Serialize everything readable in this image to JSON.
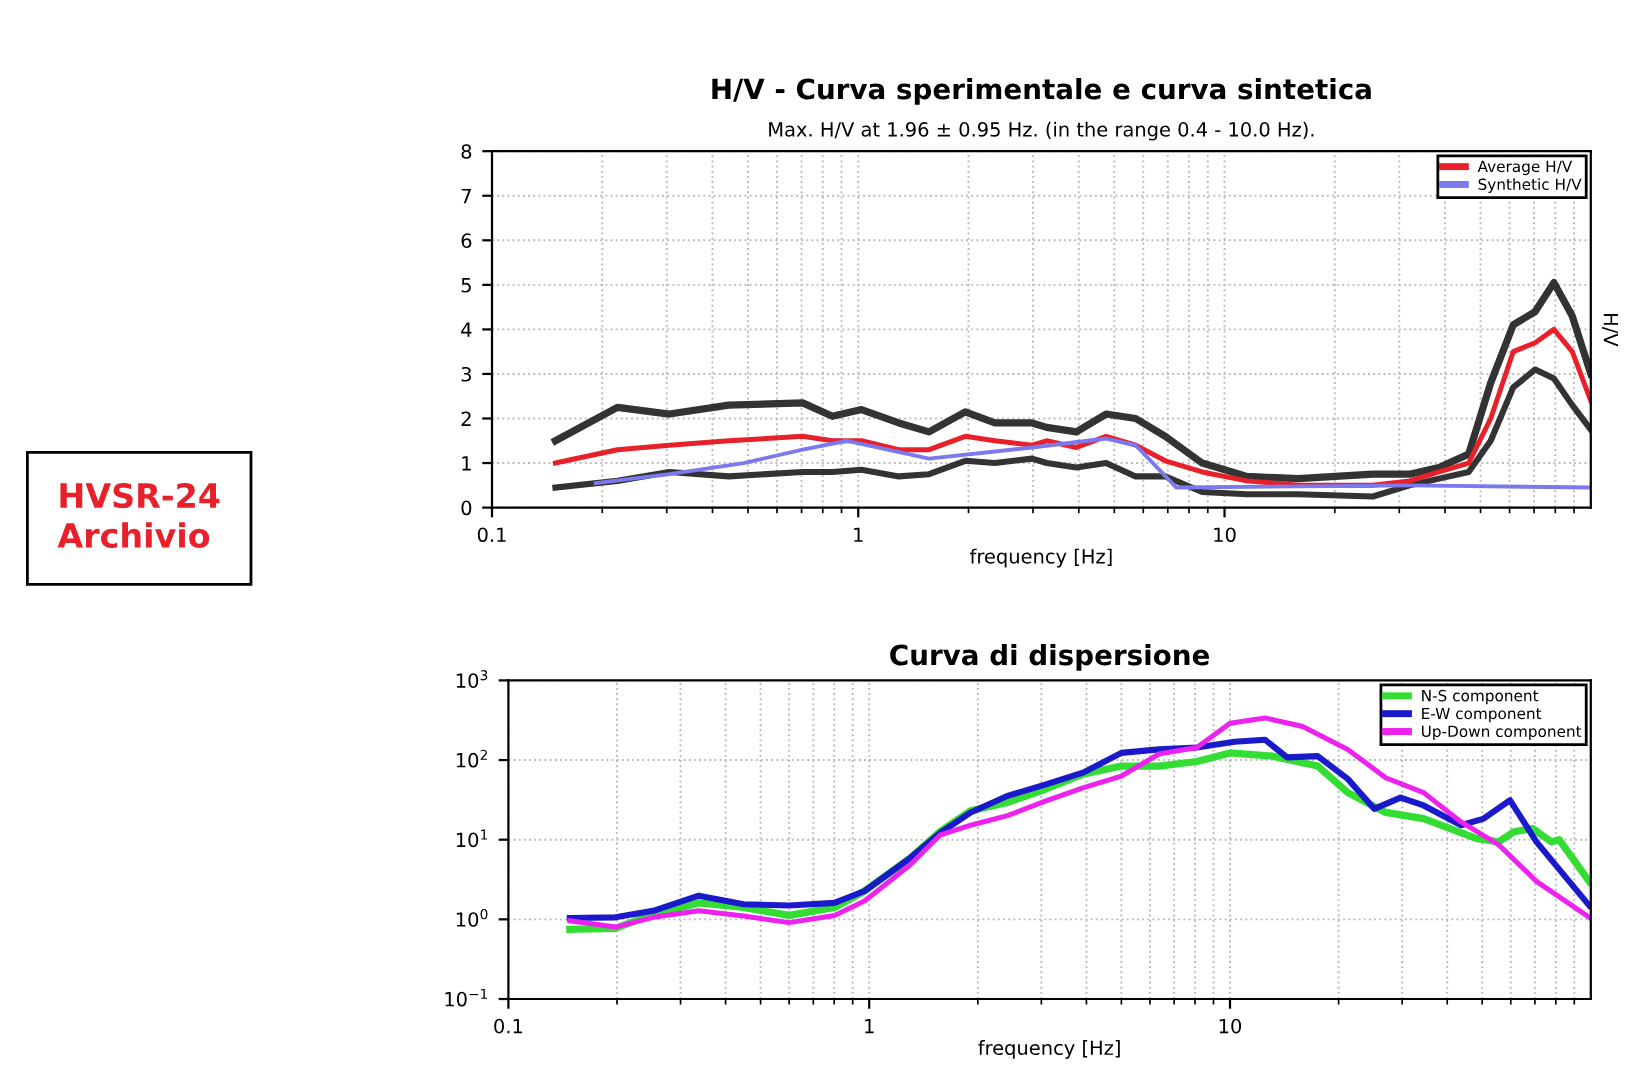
{
  "chart_data": [
    {
      "type": "line",
      "title": "H/V - Curva sperimentale e curva sintetica",
      "subtitle": "Max. H/V at 1.96 ± 0.95 Hz. (in the range 0.4 - 10.0 Hz).",
      "xlabel": "frequency [Hz]",
      "ylabel": "H/V",
      "log": "x",
      "xlim": [
        0.1,
        100
      ],
      "xticks": [
        0.1,
        1,
        10
      ],
      "ylim": [
        0,
        8
      ],
      "yticks": [
        0,
        1,
        2,
        3,
        4,
        5,
        6,
        7,
        8
      ],
      "grid": true,
      "legend": "top right",
      "annotations": [
        "HVSR-24\nArchivio"
      ],
      "series": [
        {
          "color": "#333333",
          "x": [
            0.149,
            0.22,
            0.305,
            0.443,
            0.705,
            0.85,
            1.02,
            1.29,
            1.56,
            1.96,
            2.36,
            2.98,
            3.27,
            3.94,
            4.75,
            5.72,
            6.89,
            8.69,
            11.5,
            15.9,
            25.4,
            32.0,
            38.5,
            46.4,
            53.3,
            61.4,
            70.5,
            79.3,
            89.0,
            100
          ],
          "values": [
            1.5,
            2.25,
            2.1,
            2.3,
            2.35,
            2.05,
            2.2,
            1.9,
            1.7,
            2.15,
            1.9,
            1.9,
            1.8,
            1.7,
            2.1,
            2.0,
            1.6,
            1.0,
            0.7,
            0.65,
            0.75,
            0.75,
            0.9,
            1.2,
            2.8,
            4.1,
            4.4,
            5.05,
            4.3,
            3.0
          ]
        },
        {
          "color": "#333333",
          "x": [
            0.149,
            0.22,
            0.305,
            0.443,
            0.705,
            0.85,
            1.02,
            1.29,
            1.56,
            1.96,
            2.36,
            2.98,
            3.27,
            3.94,
            4.75,
            5.72,
            6.89,
            8.69,
            11.5,
            15.9,
            25.4,
            32.0,
            38.5,
            46.4,
            53.3,
            61.4,
            70.5,
            79.3,
            89.0,
            100
          ],
          "values": [
            0.45,
            0.6,
            0.8,
            0.7,
            0.8,
            0.8,
            0.85,
            0.7,
            0.75,
            1.05,
            1.0,
            1.1,
            1.0,
            0.9,
            1.0,
            0.7,
            0.7,
            0.35,
            0.3,
            0.3,
            0.25,
            0.5,
            0.65,
            0.8,
            1.5,
            2.7,
            3.1,
            2.9,
            2.3,
            1.75
          ]
        },
        {
          "name": "Average H/V",
          "color": "#e8202a",
          "x": [
            0.149,
            0.22,
            0.305,
            0.443,
            0.705,
            0.85,
            1.02,
            1.29,
            1.56,
            1.96,
            2.36,
            2.98,
            3.27,
            3.94,
            4.75,
            5.72,
            6.89,
            8.69,
            11.5,
            15.9,
            25.4,
            32.0,
            38.5,
            46.4,
            53.3,
            61.4,
            70.5,
            79.3,
            89.0,
            100
          ],
          "values": [
            1.0,
            1.3,
            1.4,
            1.5,
            1.6,
            1.5,
            1.5,
            1.3,
            1.3,
            1.6,
            1.5,
            1.4,
            1.5,
            1.35,
            1.6,
            1.4,
            1.05,
            0.8,
            0.6,
            0.5,
            0.5,
            0.6,
            0.8,
            1.0,
            2.0,
            3.5,
            3.7,
            4.0,
            3.5,
            2.4
          ]
        },
        {
          "name": "Synthetic H/V",
          "color": "#7a7aee",
          "x": [
            0.192,
            0.305,
            0.486,
            0.705,
            0.933,
            1.56,
            2.98,
            4.75,
            5.72,
            7.39,
            32.0,
            100
          ],
          "values": [
            0.55,
            0.75,
            1.0,
            1.3,
            1.5,
            1.1,
            1.35,
            1.55,
            1.4,
            0.45,
            0.5,
            0.45
          ]
        }
      ]
    },
    {
      "type": "line",
      "title": "Curva di dispersione",
      "xlabel": "frequency [Hz]",
      "log": "xy",
      "xlim": [
        0.1,
        100
      ],
      "xticks": [
        0.1,
        1,
        10
      ],
      "ylim": [
        0.1,
        1000
      ],
      "yticks": [
        {
          "value": 0.1,
          "label": "10$^{−1}$"
        },
        {
          "value": 1,
          "label": "10$^{0}$"
        },
        {
          "value": 10,
          "label": "10$^{1}$"
        },
        {
          "value": 100,
          "label": "10$^{2}$"
        },
        {
          "value": 1000,
          "label": "10$^{3}$"
        }
      ],
      "grid": true,
      "legend": "top right",
      "series": [
        {
          "name": "N-S component",
          "color": "#33dd33",
          "x": [
            0.148,
            0.198,
            0.252,
            0.337,
            0.449,
            0.6,
            0.801,
            0.971,
            1.3,
            1.57,
            1.91,
            2.43,
            3.09,
            3.93,
            5.0,
            6.36,
            8.09,
            10.0,
            13.1,
            17.5,
            21.2,
            27.0,
            34.4,
            48.1,
            55.6,
            61.2,
            69.0,
            77.8,
            81.7,
            99
          ],
          "values": [
            0.75,
            0.77,
            1.16,
            1.61,
            1.41,
            1.12,
            1.41,
            2.27,
            5.9,
            12.6,
            23.1,
            29.6,
            43.3,
            67,
            84,
            84,
            96,
            123,
            112,
            84,
            39,
            22,
            18.4,
            10.4,
            9.4,
            12.6,
            13.8,
            9.4,
            10.0,
            3.0
          ]
        },
        {
          "name": "E-W component",
          "color": "#1a1acc",
          "x": [
            0.148,
            0.198,
            0.252,
            0.337,
            0.449,
            0.6,
            0.801,
            0.971,
            1.3,
            1.57,
            1.91,
            2.43,
            3.09,
            3.93,
            5.0,
            6.36,
            8.09,
            10.3,
            12.5,
            14.4,
            17.5,
            21.2,
            25.1,
            29.7,
            34.4,
            43.7,
            50.5,
            59.7,
            70.7,
            99
          ],
          "values": [
            1.04,
            1.06,
            1.28,
            1.98,
            1.55,
            1.49,
            1.61,
            2.27,
            5.9,
            12.1,
            22,
            35.8,
            49.4,
            70,
            123,
            136,
            144,
            170,
            180,
            108,
            112,
            58,
            24.4,
            33.8,
            26.9,
            15.2,
            18.4,
            31.3,
            9.4,
            1.49
          ]
        },
        {
          "name": "Up-Down component",
          "color": "#ee22ee",
          "x": [
            0.148,
            0.198,
            0.252,
            0.337,
            0.449,
            0.6,
            0.801,
            0.971,
            1.3,
            1.57,
            1.91,
            2.43,
            3.09,
            3.93,
            5.0,
            6.36,
            8.09,
            10.0,
            12.5,
            15.9,
            21.2,
            27.0,
            34.4,
            43.7,
            55.6,
            70.7,
            99
          ],
          "values": [
            0.96,
            0.8,
            1.06,
            1.28,
            1.1,
            0.91,
            1.12,
            1.7,
            4.85,
            11.4,
            15.2,
            20.2,
            30.7,
            45,
            63,
            119,
            144,
            290,
            338,
            264,
            136,
            60,
            39,
            16.7,
            8.6,
            3.0,
            1.06
          ]
        }
      ]
    }
  ]
}
